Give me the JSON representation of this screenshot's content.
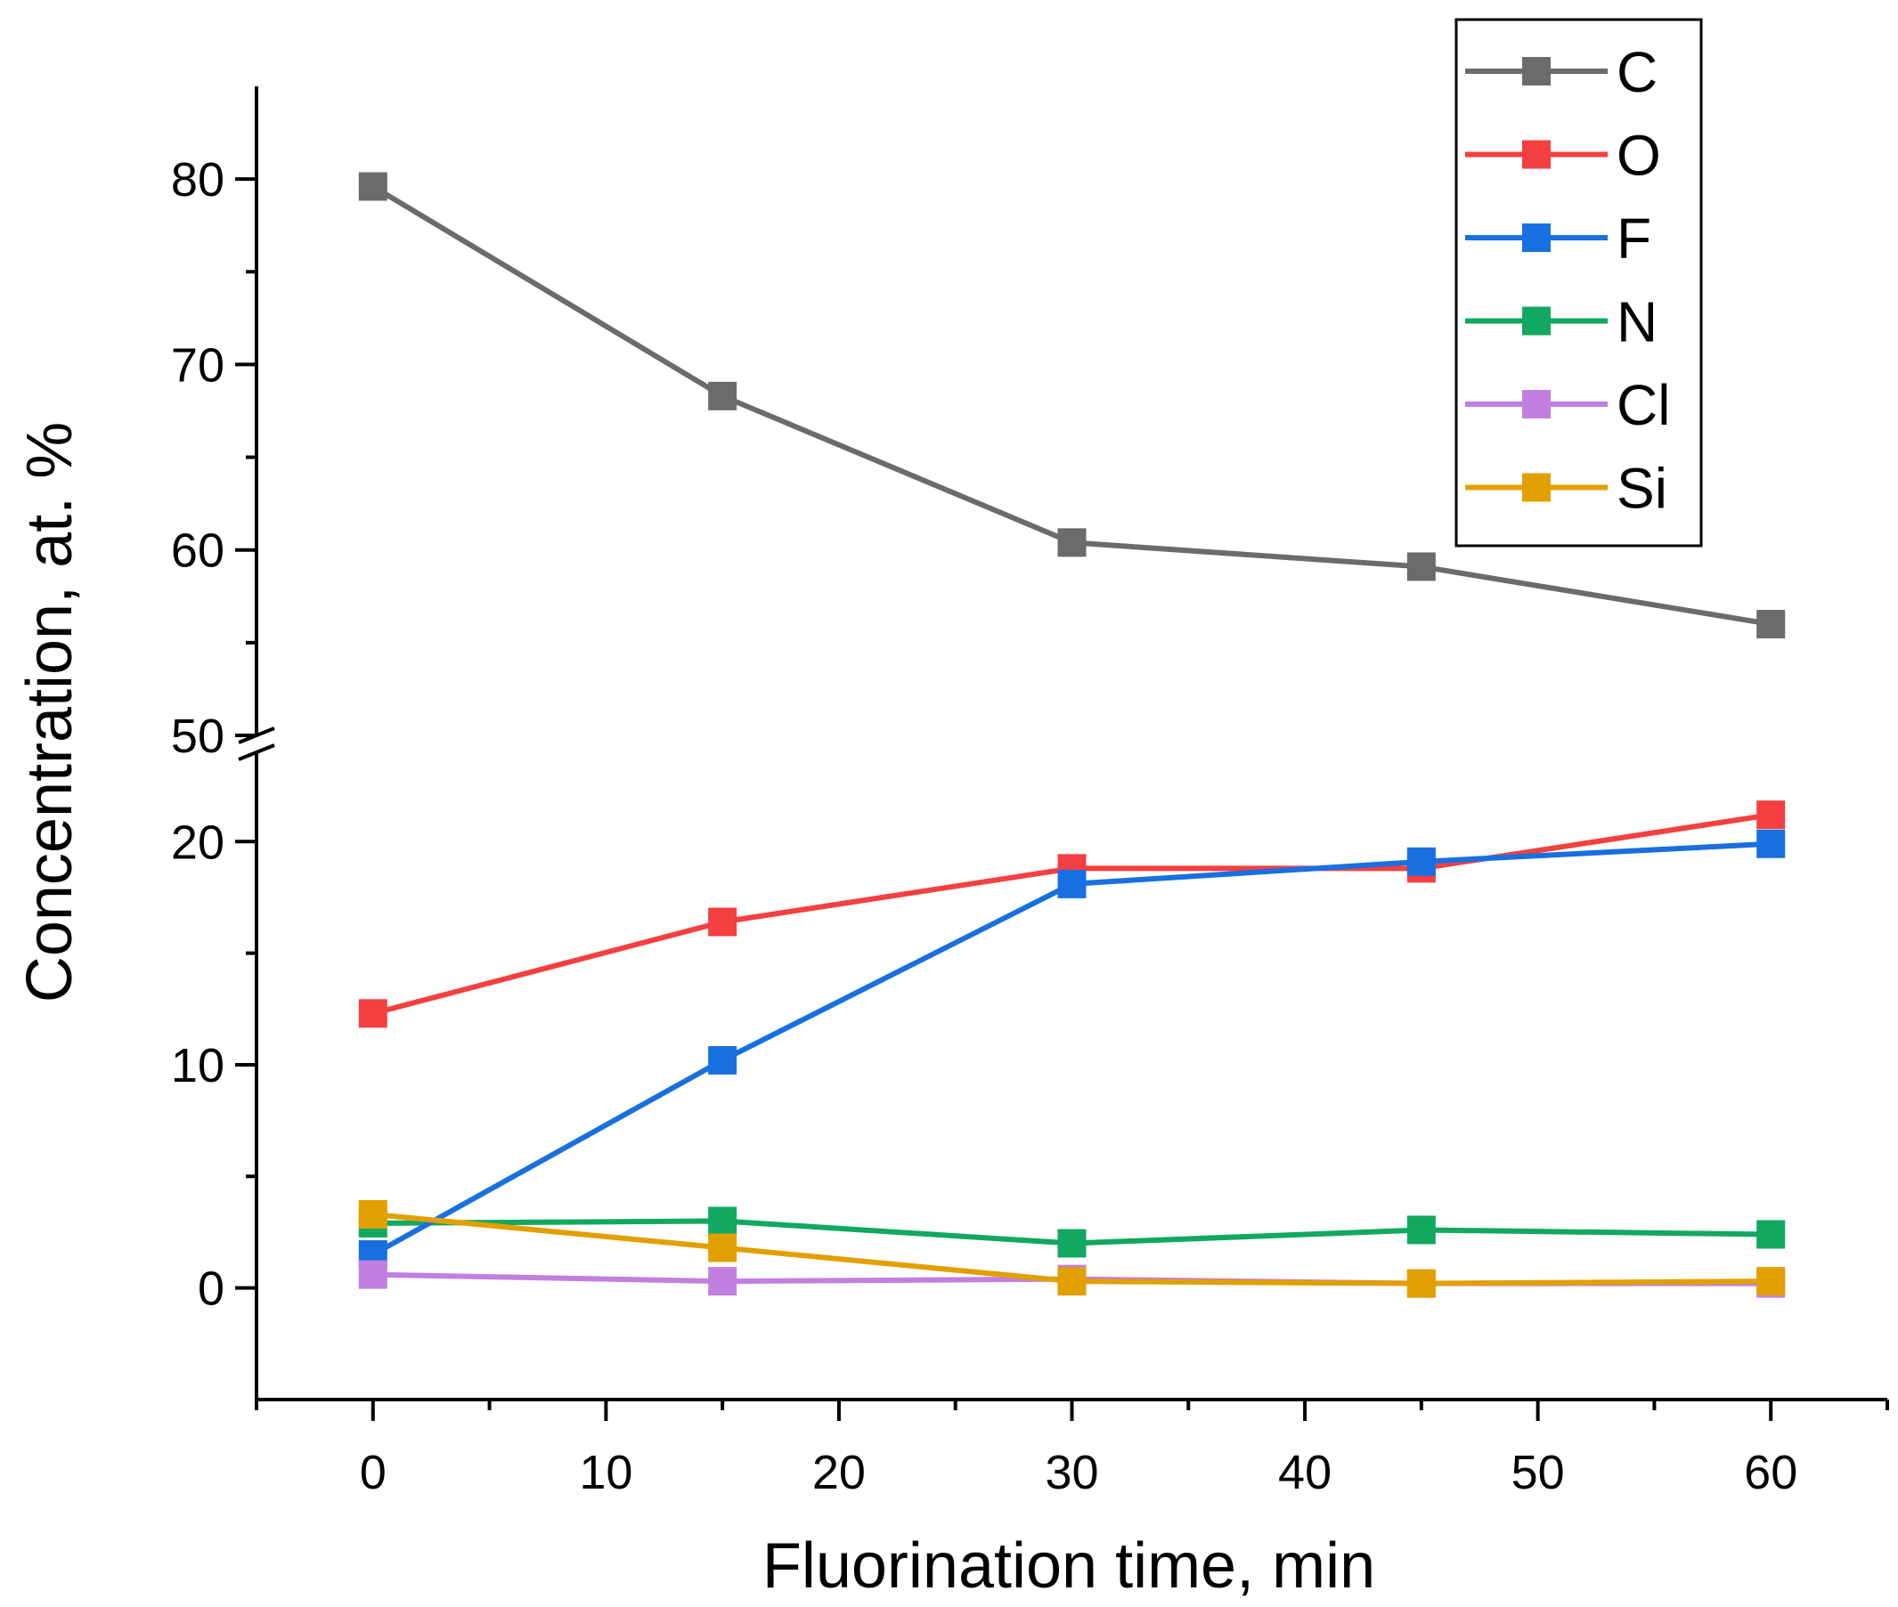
{
  "chart_data": {
    "type": "line",
    "title": "",
    "xlabel": "Fluorination time, min",
    "ylabel": "Concentration, at. %",
    "x": [
      0,
      15,
      30,
      45,
      60
    ],
    "xlim": [
      -5,
      65
    ],
    "xticks": [
      0,
      10,
      20,
      30,
      40,
      50,
      60
    ],
    "y_break": {
      "lower_range": [
        -5,
        24
      ],
      "upper_range": [
        50,
        85
      ],
      "lower_ticks": [
        0,
        10,
        20
      ],
      "upper_ticks": [
        50,
        60,
        70,
        80
      ]
    },
    "grid": false,
    "legend_position": "top-right",
    "series": [
      {
        "name": "C",
        "color": "#6b6b6b",
        "values": [
          79.6,
          68.3,
          60.4,
          59.1,
          56.0
        ]
      },
      {
        "name": "O",
        "color": "#f44040",
        "values": [
          12.3,
          16.4,
          18.8,
          18.8,
          21.2
        ]
      },
      {
        "name": "F",
        "color": "#1870e0",
        "values": [
          1.5,
          10.2,
          18.1,
          19.1,
          19.9
        ]
      },
      {
        "name": "N",
        "color": "#12a860",
        "values": [
          2.9,
          3.0,
          2.0,
          2.6,
          2.4
        ]
      },
      {
        "name": "Cl",
        "color": "#c27fe0",
        "values": [
          0.6,
          0.3,
          0.4,
          0.2,
          0.2
        ]
      },
      {
        "name": "Si",
        "color": "#e2a000",
        "values": [
          3.3,
          1.8,
          0.3,
          0.2,
          0.3
        ]
      }
    ]
  }
}
